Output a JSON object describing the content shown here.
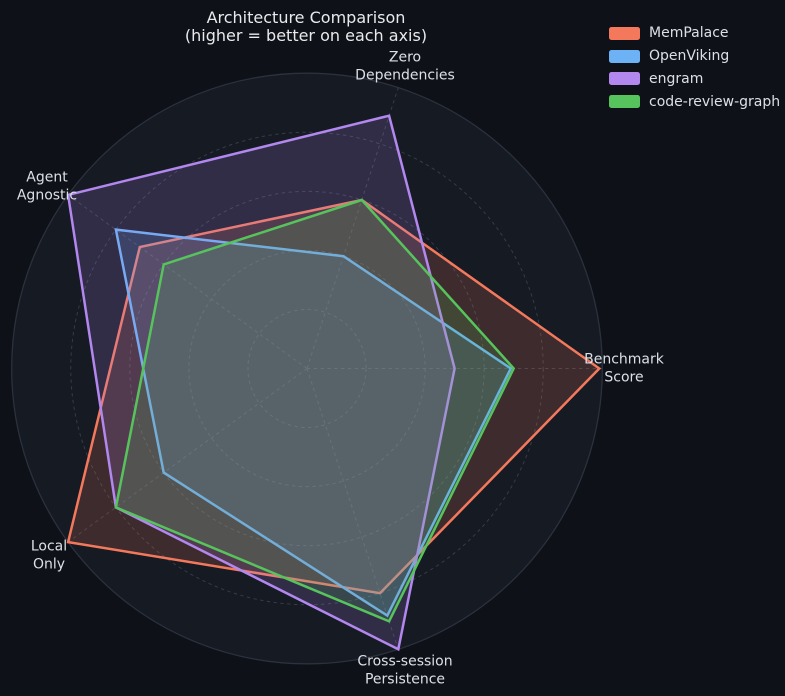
{
  "chart_data": {
    "type": "radar",
    "title": "Architecture Comparison",
    "subtitle": "(higher = better on each axis)",
    "axes": [
      "Benchmark\nScore",
      "Zero\nDependencies",
      "Agent\nAgnostic",
      "Local\nOnly",
      "Cross-session\nPersistence"
    ],
    "angles_deg": [
      0,
      72,
      144,
      216,
      288
    ],
    "scale": {
      "min": 0,
      "max": 10,
      "ring_values": [
        2,
        4,
        6,
        8,
        10
      ],
      "tick_labels_visible": false,
      "grid_style": "dashed"
    },
    "series": [
      {
        "name": "MemPalace",
        "color": "#f4795c",
        "values": [
          9.9,
          6,
          7,
          10,
          8
        ]
      },
      {
        "name": "OpenViking",
        "color": "#6cb2f4",
        "values": [
          6.9,
          4,
          8,
          6,
          8.8
        ]
      },
      {
        "name": "engram",
        "color": "#b287ee",
        "values": [
          5,
          9,
          10,
          8,
          10
        ]
      },
      {
        "name": "code-review-graph",
        "color": "#57c35c",
        "values": [
          7,
          6,
          6,
          8,
          9
        ]
      }
    ],
    "legend_position": "top-right",
    "fill_opacity": 0.18,
    "colors": {
      "background": "#0e1117",
      "plot_fill": "#151a23",
      "grid": "#353c49",
      "outline": "#2b313d",
      "text": "#dbe0e6"
    }
  }
}
